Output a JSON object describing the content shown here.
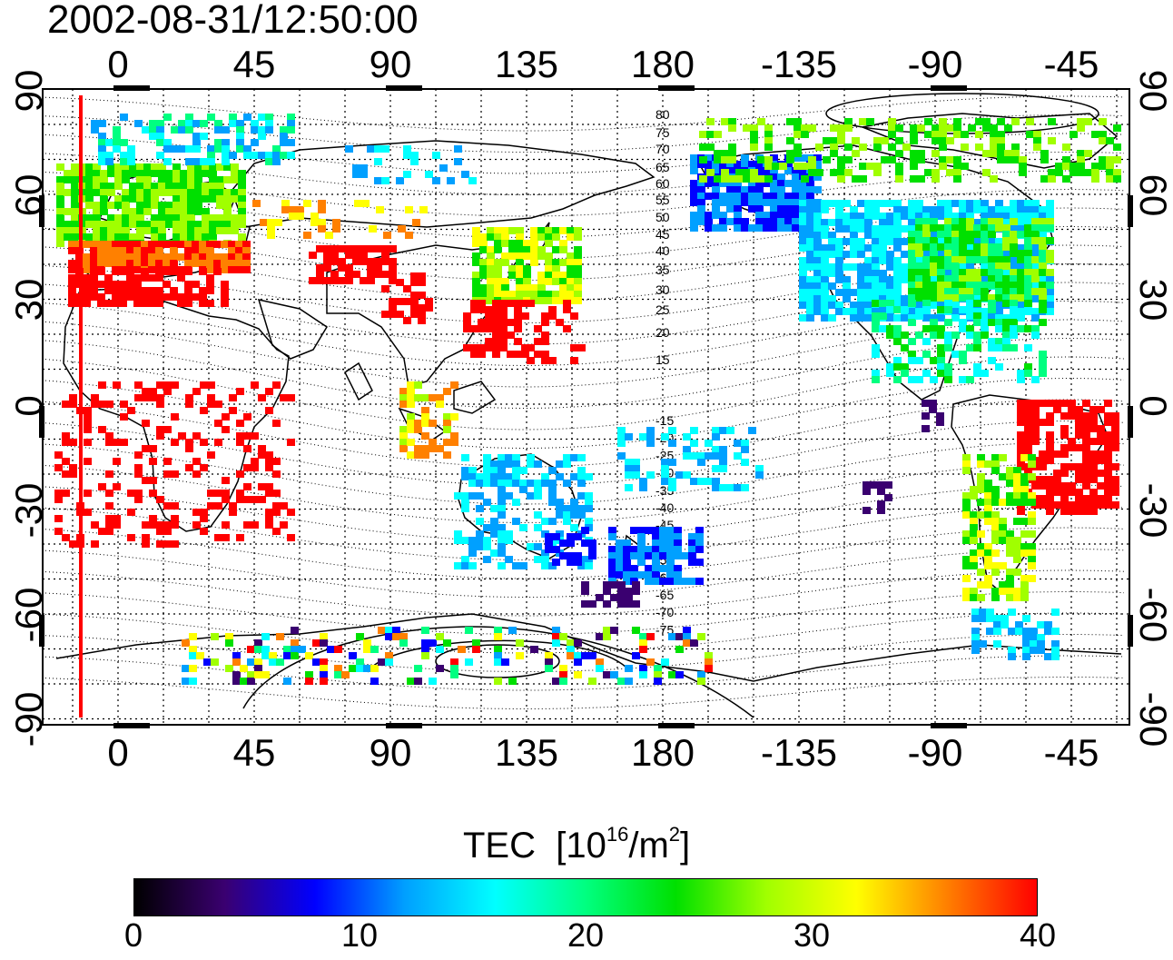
{
  "timestamp": "2002-08-31/12:50:00",
  "map": {
    "lon_top_labels": [
      "0",
      "45",
      "90",
      "135",
      "180",
      "-135",
      "-90",
      "-45"
    ],
    "lon_bottom_labels": [
      "0",
      "45",
      "90",
      "135",
      "180",
      "-135",
      "-90",
      "-45"
    ],
    "lat_left_labels": [
      "90",
      "60",
      "30",
      "0",
      "-30",
      "-60",
      "-90"
    ],
    "lat_right_labels": [
      "90",
      "60",
      "30",
      "0",
      "-30",
      "-60",
      "-90"
    ],
    "contour_labels_north": [
      "80",
      "75",
      "70",
      "65",
      "60",
      "55",
      "50",
      "45",
      "40",
      "35",
      "30",
      "25",
      "20",
      "15"
    ],
    "contour_labels_south": [
      "-15",
      "-20",
      "-25",
      "-30",
      "-35",
      "-40",
      "-45",
      "-50",
      "-55",
      "-60",
      "-65",
      "-70",
      "-75"
    ],
    "terminator_color": "#ff0000",
    "grid_style": "dotted"
  },
  "colorbar": {
    "title": "TEC",
    "unit_prefix": "[10",
    "unit_exp": "16",
    "unit_mid": "/m",
    "unit_exp2": "2",
    "unit_suffix": "]",
    "min": 0,
    "max": 40,
    "ticks": [
      "0",
      "10",
      "20",
      "30",
      "40"
    ],
    "colors": [
      "#000000",
      "#3a0070",
      "#0000ff",
      "#00a0ff",
      "#00ffff",
      "#00ff80",
      "#00e000",
      "#a0ff00",
      "#ffff00",
      "#ff8000",
      "#ff0000"
    ]
  }
}
